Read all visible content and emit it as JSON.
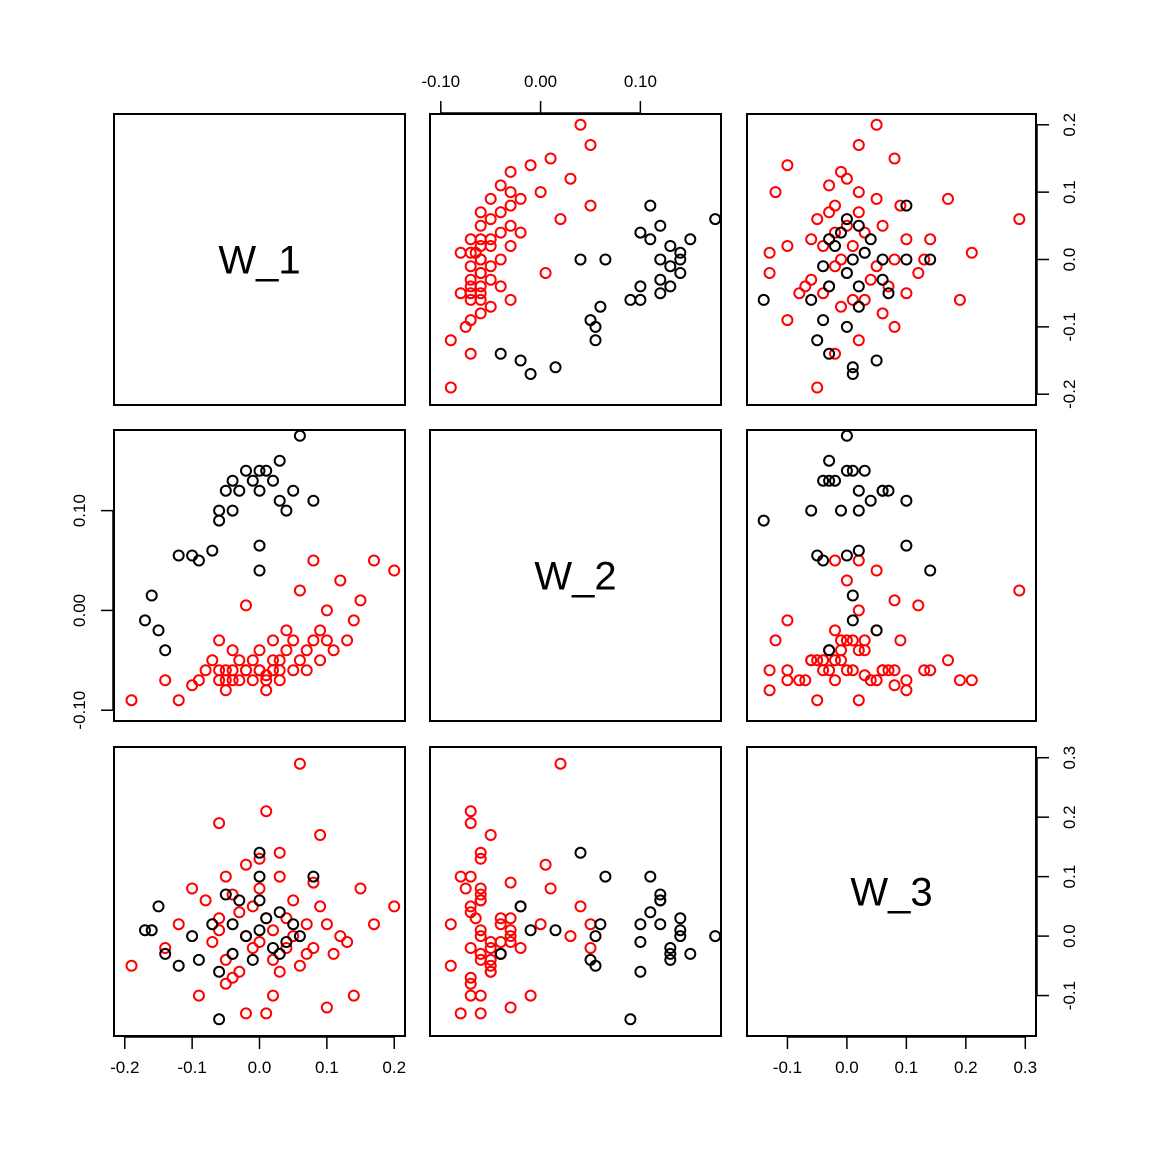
{
  "chart_data": {
    "type": "scatter-matrix",
    "variables": [
      "W_1",
      "W_2",
      "W_3"
    ],
    "groups": [
      {
        "color": "#000000"
      },
      {
        "color": "#ff0000"
      }
    ],
    "ranges": {
      "W_1": [
        -0.2,
        0.2
      ],
      "W_2": [
        -0.1,
        0.17
      ],
      "W_3": [
        -0.15,
        0.3
      ]
    },
    "ticks": {
      "W_1": {
        "values": [
          -0.2,
          -0.1,
          0.0,
          0.1,
          0.2
        ],
        "labels": [
          "-0.2",
          "-0.1",
          "0.0",
          "0.1",
          "0.2"
        ]
      },
      "W_2": {
        "values": [
          -0.1,
          0.0,
          0.1
        ],
        "labels": [
          "-0.10",
          "0.00",
          "0.10"
        ]
      },
      "W_3": {
        "values": [
          -0.1,
          0.0,
          0.1,
          0.2,
          0.3
        ],
        "labels": [
          "-0.1",
          "0.0",
          "0.1",
          "0.2",
          "0.3"
        ]
      }
    },
    "points": [
      [
        -0.19,
        -0.09,
        -0.05,
        1
      ],
      [
        -0.12,
        -0.09,
        0.02,
        1
      ],
      [
        -0.14,
        -0.07,
        -0.02,
        1
      ],
      [
        -0.1,
        -0.075,
        0.08,
        1
      ],
      [
        -0.08,
        -0.06,
        0.06,
        1
      ],
      [
        -0.07,
        -0.05,
        -0.01,
        1
      ],
      [
        -0.06,
        -0.07,
        0.19,
        1
      ],
      [
        -0.06,
        -0.03,
        0.03,
        1
      ],
      [
        -0.05,
        -0.06,
        -0.04,
        1
      ],
      [
        -0.05,
        -0.08,
        0.1,
        1
      ],
      [
        -0.04,
        -0.06,
        0.07,
        1
      ],
      [
        -0.04,
        -0.04,
        -0.03,
        1
      ],
      [
        -0.03,
        -0.07,
        0.04,
        1
      ],
      [
        -0.03,
        -0.05,
        -0.06,
        1
      ],
      [
        -0.02,
        0.005,
        0.12,
        1
      ],
      [
        -0.02,
        -0.06,
        0.0,
        1
      ],
      [
        -0.01,
        -0.07,
        0.05,
        1
      ],
      [
        -0.01,
        -0.05,
        -0.02,
        1
      ],
      [
        0.0,
        -0.06,
        0.08,
        1
      ],
      [
        0.0,
        -0.04,
        -0.01,
        1
      ],
      [
        0.01,
        -0.07,
        0.21,
        1
      ],
      [
        0.01,
        -0.065,
        0.03,
        1
      ],
      [
        0.02,
        -0.05,
        -0.04,
        1
      ],
      [
        0.02,
        -0.03,
        0.01,
        1
      ],
      [
        0.03,
        -0.07,
        0.1,
        1
      ],
      [
        0.03,
        -0.05,
        -0.06,
        1
      ],
      [
        0.04,
        -0.04,
        0.03,
        1
      ],
      [
        0.04,
        -0.02,
        -0.02,
        1
      ],
      [
        0.05,
        -0.06,
        0.06,
        1
      ],
      [
        0.05,
        -0.03,
        0.0,
        1
      ],
      [
        0.06,
        -0.05,
        -0.05,
        1
      ],
      [
        0.06,
        0.02,
        0.29,
        1
      ],
      [
        0.07,
        -0.04,
        0.02,
        1
      ],
      [
        0.07,
        -0.06,
        -0.03,
        1
      ],
      [
        0.08,
        -0.03,
        0.09,
        1
      ],
      [
        0.08,
        0.05,
        -0.02,
        1
      ],
      [
        0.09,
        -0.05,
        0.17,
        1
      ],
      [
        0.09,
        -0.02,
        0.05,
        1
      ],
      [
        0.1,
        -0.03,
        -0.12,
        1
      ],
      [
        0.1,
        0.0,
        0.02,
        1
      ],
      [
        0.11,
        -0.04,
        -0.03,
        1
      ],
      [
        0.12,
        0.03,
        0.0,
        1
      ],
      [
        0.13,
        -0.03,
        -0.01,
        1
      ],
      [
        0.14,
        -0.01,
        -0.1,
        1
      ],
      [
        0.15,
        0.01,
        0.08,
        1
      ],
      [
        0.17,
        0.05,
        0.02,
        1
      ],
      [
        0.2,
        0.04,
        0.05,
        1
      ],
      [
        -0.02,
        -0.06,
        -0.13,
        1
      ],
      [
        0.01,
        -0.08,
        -0.13,
        1
      ],
      [
        -0.06,
        -0.06,
        0.01,
        1
      ],
      [
        -0.04,
        -0.07,
        -0.07,
        1
      ],
      [
        0.03,
        -0.06,
        0.14,
        1
      ],
      [
        -0.09,
        -0.07,
        -0.1,
        1
      ],
      [
        0.0,
        -0.06,
        0.13,
        1
      ],
      [
        -0.05,
        -0.07,
        -0.08,
        1
      ],
      [
        0.02,
        -0.06,
        -0.1,
        1
      ],
      [
        -0.16,
        0.015,
        0.01,
        0
      ],
      [
        -0.17,
        -0.01,
        0.01,
        0
      ],
      [
        -0.15,
        -0.02,
        0.05,
        0
      ],
      [
        -0.14,
        -0.04,
        -0.03,
        0
      ],
      [
        -0.12,
        0.055,
        -0.05,
        0
      ],
      [
        -0.1,
        0.055,
        0.0,
        0
      ],
      [
        -0.09,
        0.05,
        -0.04,
        0
      ],
      [
        -0.07,
        0.06,
        0.02,
        0
      ],
      [
        -0.06,
        0.1,
        -0.06,
        0
      ],
      [
        -0.05,
        0.12,
        0.07,
        0
      ],
      [
        -0.04,
        0.13,
        -0.03,
        0
      ],
      [
        -0.03,
        0.12,
        0.06,
        0
      ],
      [
        -0.02,
        0.14,
        0.0,
        0
      ],
      [
        -0.01,
        0.13,
        -0.04,
        0
      ],
      [
        0.0,
        0.12,
        0.06,
        0
      ],
      [
        0.0,
        0.065,
        0.1,
        0
      ],
      [
        0.01,
        0.14,
        0.03,
        0
      ],
      [
        0.02,
        0.13,
        -0.02,
        0
      ],
      [
        0.03,
        0.11,
        0.04,
        0
      ],
      [
        0.04,
        0.1,
        -0.01,
        0
      ],
      [
        0.05,
        0.12,
        0.02,
        0
      ],
      [
        0.06,
        0.175,
        0.0,
        0
      ],
      [
        0.08,
        0.11,
        0.1,
        0
      ],
      [
        -0.06,
        0.09,
        -0.14,
        0
      ],
      [
        -0.04,
        0.1,
        0.02,
        0
      ],
      [
        0.0,
        0.14,
        0.01,
        0
      ],
      [
        0.03,
        0.15,
        -0.03,
        0
      ],
      [
        0.0,
        0.04,
        0.14,
        0
      ]
    ]
  }
}
